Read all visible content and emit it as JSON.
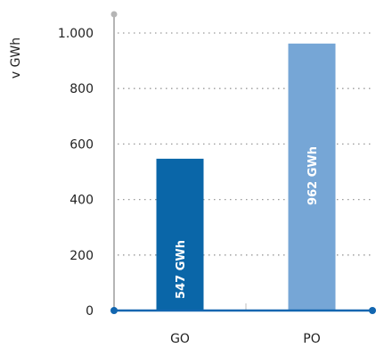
{
  "chart_data": {
    "type": "bar",
    "ylabel": "v GWh",
    "categories": [
      "GO",
      "PO"
    ],
    "values": [
      547,
      962
    ],
    "value_labels": [
      "547 GWh",
      "962 GWh"
    ],
    "bar_colors": [
      "#0a66a8",
      "#76a6d6"
    ],
    "axis_color": "#1266b0",
    "grid": true,
    "ylim": [
      0,
      1000
    ],
    "yticks": [
      0,
      200,
      400,
      600,
      800,
      1000
    ],
    "ytick_labels": [
      "0",
      "200",
      "400",
      "600",
      "800",
      "1.000"
    ]
  }
}
